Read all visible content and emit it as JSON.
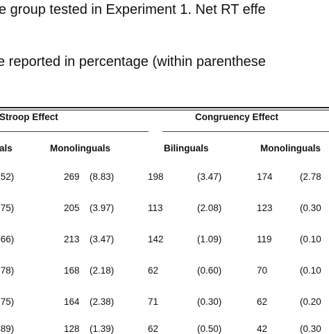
{
  "caption": {
    "line1": "e group tested in Experiment 1. Net RT effe",
    "line2": "e reported in percentage (within parenthese"
  },
  "table": {
    "groups": [
      "Stroop Effect",
      "Congruency Effect"
    ],
    "subheaders": [
      "als",
      "Monolinguals",
      "Bilinguals",
      "Monolinguals"
    ],
    "rows": [
      {
        "c1": ".52)",
        "c2": "269",
        "c3": "(8.83)",
        "c4": "198",
        "c5": "(3.47)",
        "c6": "174",
        "c7": "(2.78"
      },
      {
        "c1": ".75)",
        "c2": "205",
        "c3": "(3.97)",
        "c4": "113",
        "c5": "(2.08)",
        "c6": "123",
        "c7": "(0.30"
      },
      {
        "c1": ".66)",
        "c2": "213",
        "c3": "(3.47)",
        "c4": "142",
        "c5": "(1.09)",
        "c6": "119",
        "c7": "(0.10"
      },
      {
        "c1": ".78)",
        "c2": "168",
        "c3": "(2.18)",
        "c4": "62",
        "c5": "(0.60)",
        "c6": "70",
        "c7": "(0.10"
      },
      {
        "c1": ".75)",
        "c2": "164",
        "c3": "(2.38)",
        "c4": "71",
        "c5": "(0.30)",
        "c6": "62",
        "c7": "(0.20"
      },
      {
        "c1": ".89)",
        "c2": "128",
        "c3": "(1.39)",
        "c4": "62",
        "c5": "(0.50)",
        "c6": "42",
        "c7": "(0.30"
      }
    ]
  }
}
